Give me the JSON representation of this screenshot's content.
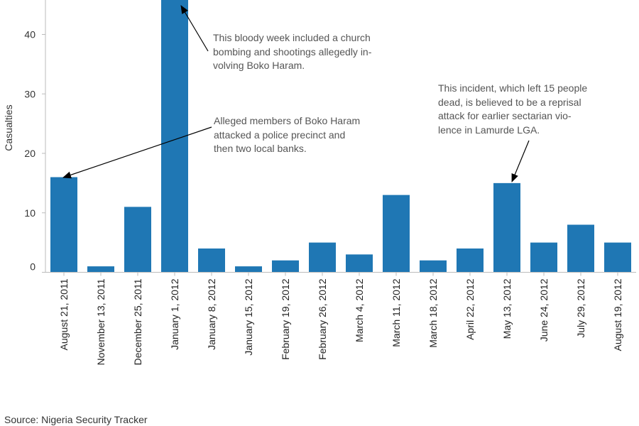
{
  "chart_data": {
    "type": "bar",
    "ylabel": "Casualties",
    "ylim": [
      0,
      46
    ],
    "yticks": [
      0,
      10,
      20,
      30,
      40
    ],
    "bar_color": "#1f77b4",
    "categories": [
      "August 21, 2011",
      "November 13, 2011",
      "December 25, 2011",
      "January 1, 2012",
      "January 8, 2012",
      "January 15, 2012",
      "February 19, 2012",
      "February 26, 2012",
      "March 4, 2012",
      "March 11, 2012",
      "March 18, 2012",
      "April 22, 2012",
      "May 13, 2012",
      "June 24, 2012",
      "July 29, 2012",
      "August 19, 2012"
    ],
    "values": [
      16,
      1,
      11,
      46,
      4,
      1,
      2,
      5,
      3,
      13,
      2,
      4,
      15,
      5,
      8,
      5
    ],
    "annotations": [
      {
        "lines": [
          "This bloody week included a church",
          "bombing and shootings allegedly in-",
          "volving Boko Haram."
        ],
        "target": "January 1, 2012"
      },
      {
        "lines": [
          "Alleged members of Boko Haram",
          "attacked a police precinct and",
          "then two local banks."
        ],
        "target": "August 21, 2011"
      },
      {
        "lines": [
          "This incident, which left 15 people",
          "dead, is believed to be a reprisal",
          "attack for earlier sectarian vio-",
          "lence in Lamurde LGA."
        ],
        "target": "May 13, 2012"
      }
    ]
  },
  "source": "Source: Nigeria Security Tracker"
}
